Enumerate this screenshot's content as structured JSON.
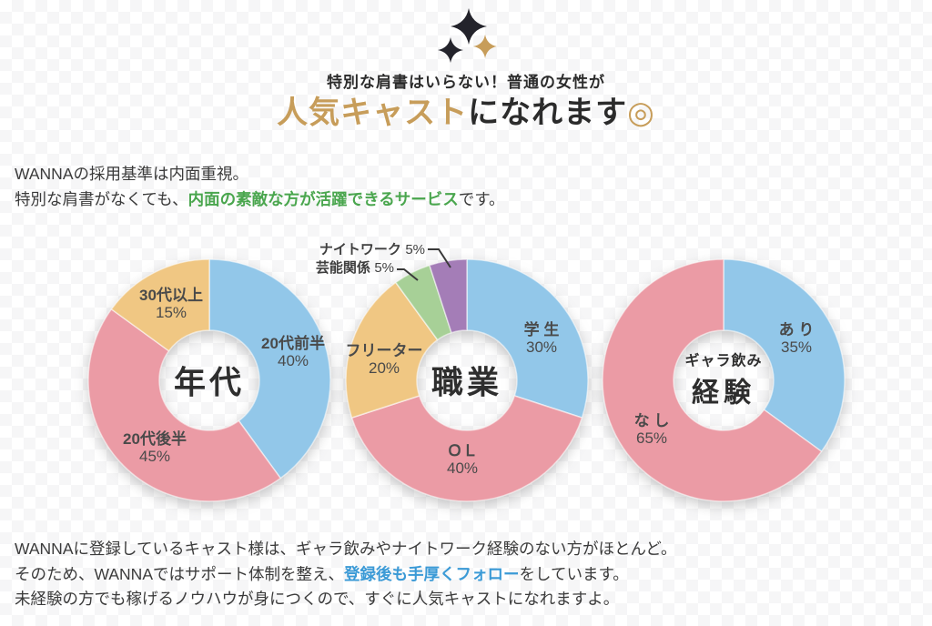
{
  "hero": {
    "subtitle": "特別な肩書はいらない！普通の女性が",
    "title_highlight": "人気キャスト",
    "title_rest": "になれます",
    "title_mark": "◎",
    "colors": {
      "gold": "#c79d5a",
      "dark": "#2b2b2b"
    }
  },
  "icons": {
    "sparkle_dark": "#23232b",
    "sparkle_gold": "#c79d5a"
  },
  "intro": {
    "line1": "WANNAの採用基準は内面重視。",
    "line2_pre": "特別な肩書がなくても、",
    "line2_highlight": "内面の素敵な方が活躍できるサービス",
    "line2_post": "です。",
    "highlight_color": "#4aa64e"
  },
  "chart_data": [
    {
      "type": "pie",
      "title": "年代",
      "segments": [
        {
          "label": "20代前半",
          "value": 40,
          "pct": "40%",
          "color": "#92c7e9"
        },
        {
          "label": "20代後半",
          "value": 45,
          "pct": "45%",
          "color": "#eb9ba5"
        },
        {
          "label": "30代以上",
          "value": 15,
          "pct": "15%",
          "color": "#f0c783"
        }
      ]
    },
    {
      "type": "pie",
      "title": "職業",
      "segments": [
        {
          "label": "学 生",
          "value": 30,
          "pct": "30%",
          "color": "#92c7e9"
        },
        {
          "label": "ＯＬ",
          "value": 40,
          "pct": "40%",
          "color": "#eb9ba5"
        },
        {
          "label": "フリーター",
          "value": 20,
          "pct": "20%",
          "color": "#f0c783"
        },
        {
          "label": "芸能関係",
          "value": 5,
          "pct": "5%",
          "color": "#a7d097"
        },
        {
          "label": "ナイトワーク",
          "value": 5,
          "pct": "5%",
          "color": "#a47db7"
        }
      ]
    },
    {
      "type": "pie",
      "title_small": "ギャラ飲み",
      "title": "経験",
      "segments": [
        {
          "label": "あ り",
          "value": 35,
          "pct": "35%",
          "color": "#92c7e9"
        },
        {
          "label": "な し",
          "value": 65,
          "pct": "65%",
          "color": "#eb9ba5"
        }
      ]
    }
  ],
  "outro": {
    "line1": "WANNAに登録しているキャスト様は、ギャラ飲みやナイトワーク経験のない方がほとんど。",
    "line2_pre": "そのため、WANNAではサポート体制を整え、",
    "line2_highlight": "登録後も手厚くフォロー",
    "line2_post": "をしています。",
    "line3": "未経験の方でも稼げるノウハウが身につくので、すぐに人気キャストになれますよ。",
    "highlight_color": "#3b9ad6"
  }
}
